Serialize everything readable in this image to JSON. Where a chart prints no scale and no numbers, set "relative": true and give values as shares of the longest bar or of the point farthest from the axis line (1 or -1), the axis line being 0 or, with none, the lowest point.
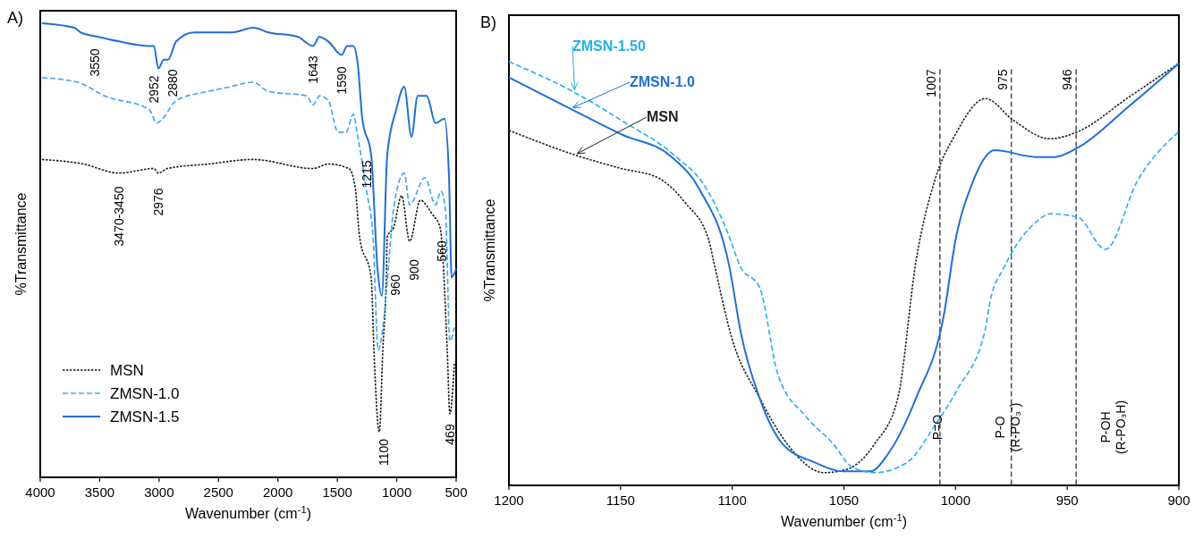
{
  "chart_data": [
    {
      "type": "line",
      "relative": true,
      "xlabel": "Wavenumber (cm$^{-1}$)",
      "ylabel": "%Transmittance",
      "xlim": [
        4000,
        500
      ],
      "xticks": [
        4000,
        3500,
        3000,
        2500,
        2000,
        1500,
        1000,
        500
      ],
      "legend": "bottom left",
      "series": [
        {
          "name": "MSN",
          "color": "#1a1a1a",
          "line_style": "dotted",
          "x": [
            3985,
            3639,
            3338,
            3044,
            3006,
            2931,
            2585,
            2209,
            1704,
            1576,
            1403,
            1350,
            1313,
            1215,
            1192,
            1147,
            1117,
            1087,
            1080,
            1027,
            959,
            891,
            801,
            703,
            635,
            575,
            553,
            515
          ],
          "values": [
            0.7,
            0.69,
            0.67,
            0.68,
            0.67,
            0.68,
            0.69,
            0.7,
            0.68,
            0.69,
            0.68,
            0.64,
            0.53,
            0.44,
            0.28,
            0.1,
            0.28,
            0.45,
            0.53,
            0.55,
            0.62,
            0.52,
            0.61,
            0.58,
            0.55,
            0.28,
            0.14,
            0.25
          ]
        },
        {
          "name": "ZMSN-1.0",
          "color": "#3aa6ee",
          "line_style": "dashed",
          "x": [
            3985,
            3684,
            3458,
            3082,
            3021,
            2969,
            2856,
            2585,
            2404,
            2209,
            2081,
            1757,
            1704,
            1652,
            1576,
            1494,
            1426,
            1366,
            1328,
            1253,
            1200,
            1155,
            1117,
            1080,
            1027,
            937,
            891,
            763,
            673,
            628,
            590,
            553,
            515
          ],
          "values": [
            0.88,
            0.87,
            0.84,
            0.81,
            0.78,
            0.79,
            0.83,
            0.85,
            0.86,
            0.87,
            0.85,
            0.84,
            0.82,
            0.84,
            0.83,
            0.76,
            0.76,
            0.8,
            0.75,
            0.63,
            0.53,
            0.28,
            0.33,
            0.43,
            0.59,
            0.67,
            0.6,
            0.66,
            0.6,
            0.63,
            0.59,
            0.3,
            0.33
          ]
        },
        {
          "name": "ZMSN-1.5",
          "color": "#1f6fd8",
          "line_style": "solid",
          "x": [
            3985,
            3714,
            3661,
            3511,
            3338,
            3082,
            3044,
            3006,
            2961,
            2924,
            2856,
            2705,
            2382,
            2209,
            2081,
            1832,
            1704,
            1652,
            1576,
            1463,
            1418,
            1366,
            1328,
            1290,
            1215,
            1162,
            1125,
            1080,
            1004,
            937,
            876,
            824,
            748,
            673,
            598,
            560,
            538,
            500
          ],
          "values": [
            1.0,
            0.99,
            0.98,
            0.97,
            0.96,
            0.95,
            0.95,
            0.9,
            0.92,
            0.92,
            0.96,
            0.98,
            0.98,
            0.99,
            0.98,
            0.97,
            0.95,
            0.97,
            0.96,
            0.93,
            0.95,
            0.95,
            0.91,
            0.79,
            0.71,
            0.46,
            0.4,
            0.71,
            0.81,
            0.86,
            0.75,
            0.84,
            0.84,
            0.78,
            0.79,
            0.66,
            0.44,
            0.46
          ]
        }
      ],
      "annotations": [
        "A)",
        "3550",
        "2952",
        "2880",
        "1643",
        "1590",
        "1215",
        "3470-3450",
        "2976",
        "960",
        "900",
        "560",
        "1100",
        "469"
      ]
    },
    {
      "type": "line",
      "relative": true,
      "xlabel": "Wavenumber (cm$^{-1}$)",
      "ylabel": "%Transmittance",
      "xlim": [
        1200,
        900
      ],
      "xticks": [
        1200,
        1150,
        1100,
        1050,
        1000,
        950,
        900
      ],
      "series": [
        {
          "name": "MSN",
          "color": "#222222",
          "line_style": "dotted",
          "x": [
            1200,
            1170.5,
            1149.8,
            1133.3,
            1120.9,
            1110.5,
            1108.5,
            1100.2,
            1087.8,
            1075.4,
            1058.9,
            1048.6,
            1036.2,
            1025.8,
            1017.6,
            1009.3,
            1000,
            986.6,
            974.2,
            957.6,
            945.2,
            922.5,
            900
          ],
          "values": [
            0.838,
            0.78,
            0.748,
            0.726,
            0.666,
            0.579,
            0.533,
            0.348,
            0.207,
            0.098,
            0.03,
            0.038,
            0.098,
            0.207,
            0.533,
            0.72,
            0.829,
            0.913,
            0.862,
            0.818,
            0.835,
            0.916,
            0.996
          ]
        },
        {
          "name": "ZMSN-1.0",
          "color": "#1f6fd8",
          "line_style": "solid",
          "x": [
            1200,
            1172.5,
            1149.8,
            1127.1,
            1114.7,
            1101.2,
            1096.1,
            1087.8,
            1077.5,
            1063,
            1050.6,
            1038.2,
            1030,
            1017.6,
            1005.2,
            1000,
            992.8,
            982.4,
            963.8,
            955.6,
            945.2,
            922.5,
            900
          ],
          "values": [
            0.963,
            0.889,
            0.829,
            0.775,
            0.699,
            0.514,
            0.359,
            0.207,
            0.098,
            0.054,
            0.033,
            0.033,
            0.076,
            0.207,
            0.403,
            0.579,
            0.709,
            0.791,
            0.775,
            0.775,
            0.797,
            0.894,
            0.996
          ]
        },
        {
          "name": "ZMSN-1.50",
          "color": "#22b0ee",
          "line_style": "dashed",
          "x": [
            1200,
            1170.5,
            1149.8,
            1125,
            1112.6,
            1102.3,
            1096.1,
            1087.8,
            1079.5,
            1067.1,
            1054.8,
            1046.5,
            1036.2,
            1021.7,
            1009.3,
            999,
            986.6,
            984.5,
            978.3,
            963.8,
            957.6,
            945.2,
            932.9,
            918.4,
            900
          ],
          "values": [
            1.0,
            0.927,
            0.862,
            0.775,
            0.709,
            0.6,
            0.514,
            0.468,
            0.261,
            0.163,
            0.098,
            0.044,
            0.03,
            0.054,
            0.141,
            0.228,
            0.37,
            0.435,
            0.514,
            0.622,
            0.641,
            0.633,
            0.557,
            0.72,
            0.835
          ]
        }
      ],
      "ref_lines": [
        {
          "axis": "x",
          "value": 1007,
          "label": "1007",
          "color": "#333333",
          "line_style": "dashed"
        },
        {
          "axis": "x",
          "value": 975,
          "label": "975",
          "color": "#333333",
          "line_style": "dashed"
        },
        {
          "axis": "x",
          "value": 946,
          "label": "946",
          "color": "#333333",
          "line_style": "dashed"
        }
      ],
      "annotations": [
        "B)",
        "P=O",
        "P-O (R-PO₃⁻)",
        "P-OH (R-PO₃H)"
      ]
    }
  ]
}
